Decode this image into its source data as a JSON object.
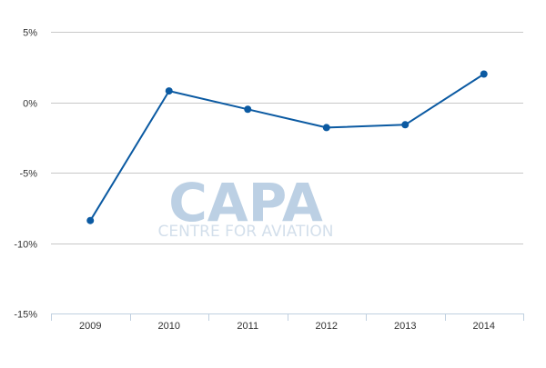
{
  "watermark": {
    "logo": "CAPA",
    "subtitle": "CENTRE FOR AVIATION"
  },
  "chart_data": {
    "type": "line",
    "x": [
      "2009",
      "2010",
      "2011",
      "2012",
      "2013",
      "2014"
    ],
    "series": [
      {
        "values": [
          -8.4,
          0.8,
          -0.5,
          -1.8,
          -1.6,
          2.0
        ],
        "color": "#0b5aa2"
      }
    ],
    "ylim": [
      -15,
      5
    ],
    "yticks": [
      5,
      0,
      -5,
      -10,
      -15
    ],
    "ytick_labels": [
      "5%",
      "0%",
      "-5%",
      "-10%",
      "-15%"
    ],
    "grid": true,
    "gridline_color": "#c8c8c8",
    "legend": false
  }
}
